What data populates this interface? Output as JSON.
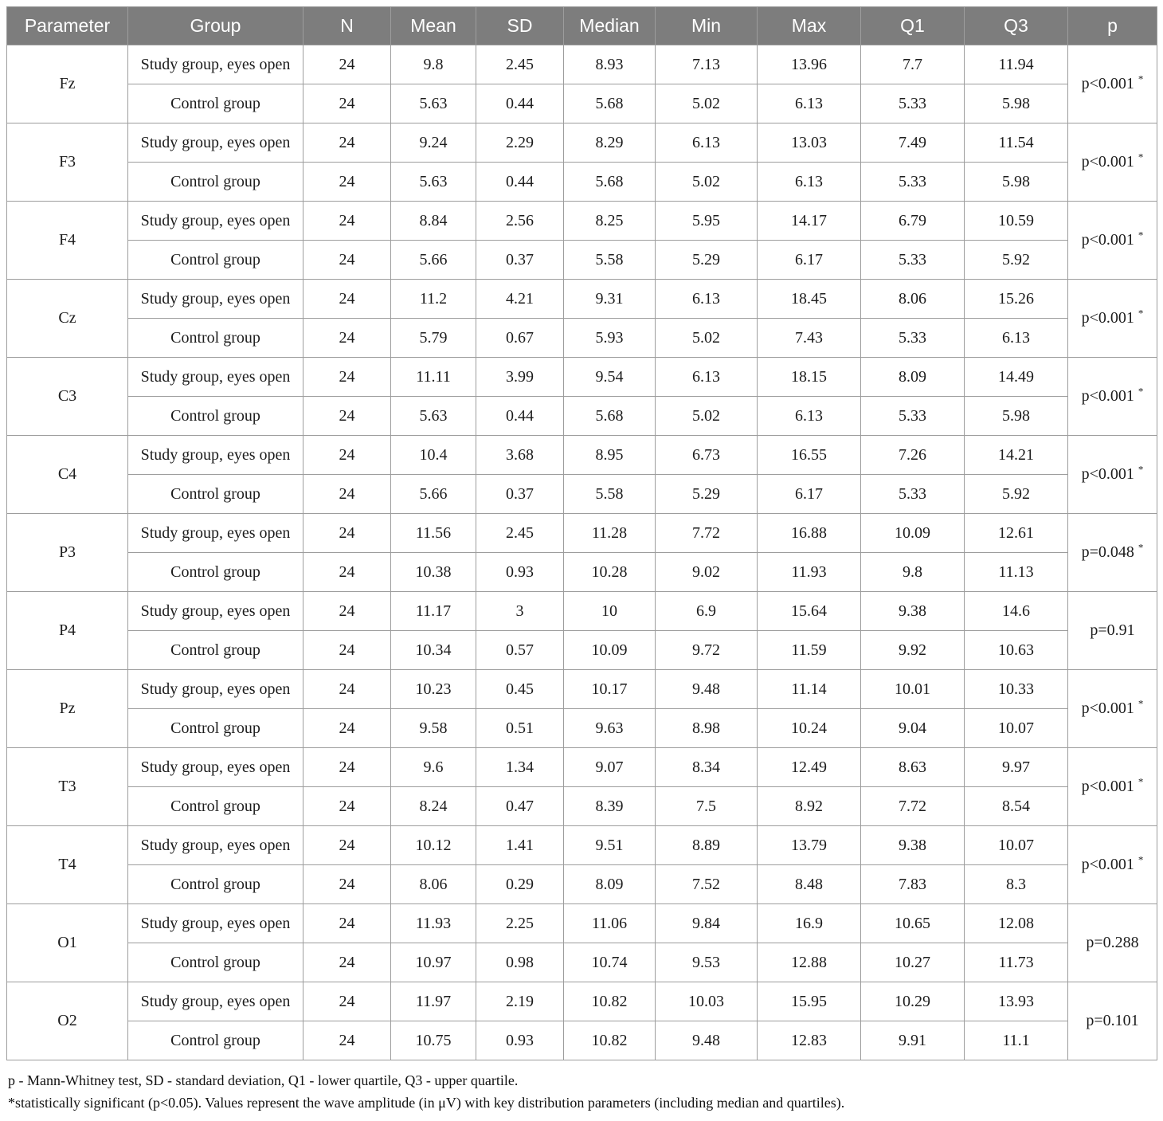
{
  "colors": {
    "header_bg": "#7d7d7d",
    "header_text": "#ffffff",
    "border": "#9d9d9d",
    "body_text": "#1c1c1c"
  },
  "table": {
    "columns": [
      "Parameter",
      "Group",
      "N",
      "Mean",
      "SD",
      "Median",
      "Min",
      "Max",
      "Q1",
      "Q3",
      "p"
    ],
    "rows": [
      {
        "parameter": "Fz",
        "p": "p<0.001",
        "star": "*",
        "groups": [
          {
            "label": "Study group, eyes open",
            "n": "24",
            "mean": "9.8",
            "sd": "2.45",
            "median": "8.93",
            "min": "7.13",
            "max": "13.96",
            "q1": "7.7",
            "q3": "11.94"
          },
          {
            "label": "Control group",
            "n": "24",
            "mean": "5.63",
            "sd": "0.44",
            "median": "5.68",
            "min": "5.02",
            "max": "6.13",
            "q1": "5.33",
            "q3": "5.98"
          }
        ]
      },
      {
        "parameter": "F3",
        "p": "p<0.001",
        "star": "*",
        "groups": [
          {
            "label": "Study group, eyes open",
            "n": "24",
            "mean": "9.24",
            "sd": "2.29",
            "median": "8.29",
            "min": "6.13",
            "max": "13.03",
            "q1": "7.49",
            "q3": "11.54"
          },
          {
            "label": "Control group",
            "n": "24",
            "mean": "5.63",
            "sd": "0.44",
            "median": "5.68",
            "min": "5.02",
            "max": "6.13",
            "q1": "5.33",
            "q3": "5.98"
          }
        ]
      },
      {
        "parameter": "F4",
        "p": "p<0.001",
        "star": "*",
        "groups": [
          {
            "label": "Study group, eyes open",
            "n": "24",
            "mean": "8.84",
            "sd": "2.56",
            "median": "8.25",
            "min": "5.95",
            "max": "14.17",
            "q1": "6.79",
            "q3": "10.59"
          },
          {
            "label": "Control group",
            "n": "24",
            "mean": "5.66",
            "sd": "0.37",
            "median": "5.58",
            "min": "5.29",
            "max": "6.17",
            "q1": "5.33",
            "q3": "5.92"
          }
        ]
      },
      {
        "parameter": "Cz",
        "p": "p<0.001",
        "star": "*",
        "groups": [
          {
            "label": "Study group, eyes open",
            "n": "24",
            "mean": "11.2",
            "sd": "4.21",
            "median": "9.31",
            "min": "6.13",
            "max": "18.45",
            "q1": "8.06",
            "q3": "15.26"
          },
          {
            "label": "Control group",
            "n": "24",
            "mean": "5.79",
            "sd": "0.67",
            "median": "5.93",
            "min": "5.02",
            "max": "7.43",
            "q1": "5.33",
            "q3": "6.13"
          }
        ]
      },
      {
        "parameter": "C3",
        "p": "p<0.001",
        "star": "*",
        "groups": [
          {
            "label": "Study group, eyes open",
            "n": "24",
            "mean": "11.11",
            "sd": "3.99",
            "median": "9.54",
            "min": "6.13",
            "max": "18.15",
            "q1": "8.09",
            "q3": "14.49"
          },
          {
            "label": "Control group",
            "n": "24",
            "mean": "5.63",
            "sd": "0.44",
            "median": "5.68",
            "min": "5.02",
            "max": "6.13",
            "q1": "5.33",
            "q3": "5.98"
          }
        ]
      },
      {
        "parameter": "C4",
        "p": "p<0.001",
        "star": "*",
        "groups": [
          {
            "label": "Study group, eyes open",
            "n": "24",
            "mean": "10.4",
            "sd": "3.68",
            "median": "8.95",
            "min": "6.73",
            "max": "16.55",
            "q1": "7.26",
            "q3": "14.21"
          },
          {
            "label": "Control group",
            "n": "24",
            "mean": "5.66",
            "sd": "0.37",
            "median": "5.58",
            "min": "5.29",
            "max": "6.17",
            "q1": "5.33",
            "q3": "5.92"
          }
        ]
      },
      {
        "parameter": "P3",
        "p": "p=0.048",
        "star": "*",
        "groups": [
          {
            "label": "Study group, eyes open",
            "n": "24",
            "mean": "11.56",
            "sd": "2.45",
            "median": "11.28",
            "min": "7.72",
            "max": "16.88",
            "q1": "10.09",
            "q3": "12.61"
          },
          {
            "label": "Control group",
            "n": "24",
            "mean": "10.38",
            "sd": "0.93",
            "median": "10.28",
            "min": "9.02",
            "max": "11.93",
            "q1": "9.8",
            "q3": "11.13"
          }
        ]
      },
      {
        "parameter": "P4",
        "p": "p=0.91",
        "star": "",
        "groups": [
          {
            "label": "Study group, eyes open",
            "n": "24",
            "mean": "11.17",
            "sd": "3",
            "median": "10",
            "min": "6.9",
            "max": "15.64",
            "q1": "9.38",
            "q3": "14.6"
          },
          {
            "label": "Control group",
            "n": "24",
            "mean": "10.34",
            "sd": "0.57",
            "median": "10.09",
            "min": "9.72",
            "max": "11.59",
            "q1": "9.92",
            "q3": "10.63"
          }
        ]
      },
      {
        "parameter": "Pz",
        "p": "p<0.001",
        "star": "*",
        "groups": [
          {
            "label": "Study group, eyes open",
            "n": "24",
            "mean": "10.23",
            "sd": "0.45",
            "median": "10.17",
            "min": "9.48",
            "max": "11.14",
            "q1": "10.01",
            "q3": "10.33"
          },
          {
            "label": "Control group",
            "n": "24",
            "mean": "9.58",
            "sd": "0.51",
            "median": "9.63",
            "min": "8.98",
            "max": "10.24",
            "q1": "9.04",
            "q3": "10.07"
          }
        ]
      },
      {
        "parameter": "T3",
        "p": "p<0.001",
        "star": "*",
        "groups": [
          {
            "label": "Study group, eyes open",
            "n": "24",
            "mean": "9.6",
            "sd": "1.34",
            "median": "9.07",
            "min": "8.34",
            "max": "12.49",
            "q1": "8.63",
            "q3": "9.97"
          },
          {
            "label": "Control group",
            "n": "24",
            "mean": "8.24",
            "sd": "0.47",
            "median": "8.39",
            "min": "7.5",
            "max": "8.92",
            "q1": "7.72",
            "q3": "8.54"
          }
        ]
      },
      {
        "parameter": "T4",
        "p": "p<0.001",
        "star": "*",
        "groups": [
          {
            "label": "Study group, eyes open",
            "n": "24",
            "mean": "10.12",
            "sd": "1.41",
            "median": "9.51",
            "min": "8.89",
            "max": "13.79",
            "q1": "9.38",
            "q3": "10.07"
          },
          {
            "label": "Control group",
            "n": "24",
            "mean": "8.06",
            "sd": "0.29",
            "median": "8.09",
            "min": "7.52",
            "max": "8.48",
            "q1": "7.83",
            "q3": "8.3"
          }
        ]
      },
      {
        "parameter": "O1",
        "p": "p=0.288",
        "star": "",
        "groups": [
          {
            "label": "Study group, eyes open",
            "n": "24",
            "mean": "11.93",
            "sd": "2.25",
            "median": "11.06",
            "min": "9.84",
            "max": "16.9",
            "q1": "10.65",
            "q3": "12.08"
          },
          {
            "label": "Control group",
            "n": "24",
            "mean": "10.97",
            "sd": "0.98",
            "median": "10.74",
            "min": "9.53",
            "max": "12.88",
            "q1": "10.27",
            "q3": "11.73"
          }
        ]
      },
      {
        "parameter": "O2",
        "p": "p=0.101",
        "star": "",
        "groups": [
          {
            "label": "Study group, eyes open",
            "n": "24",
            "mean": "11.97",
            "sd": "2.19",
            "median": "10.82",
            "min": "10.03",
            "max": "15.95",
            "q1": "10.29",
            "q3": "13.93"
          },
          {
            "label": "Control group",
            "n": "24",
            "mean": "10.75",
            "sd": "0.93",
            "median": "10.82",
            "min": "9.48",
            "max": "12.83",
            "q1": "9.91",
            "q3": "11.1"
          }
        ]
      }
    ]
  },
  "footnotes": {
    "abbreviations": "p - Mann-Whitney test, SD - standard deviation, Q1 - lower quartile, Q3 - upper quartile.",
    "significance": "*statistically significant (p<0.05). Values represent the wave amplitude (in μV) with key distribution parameters (including median and quartiles)."
  }
}
